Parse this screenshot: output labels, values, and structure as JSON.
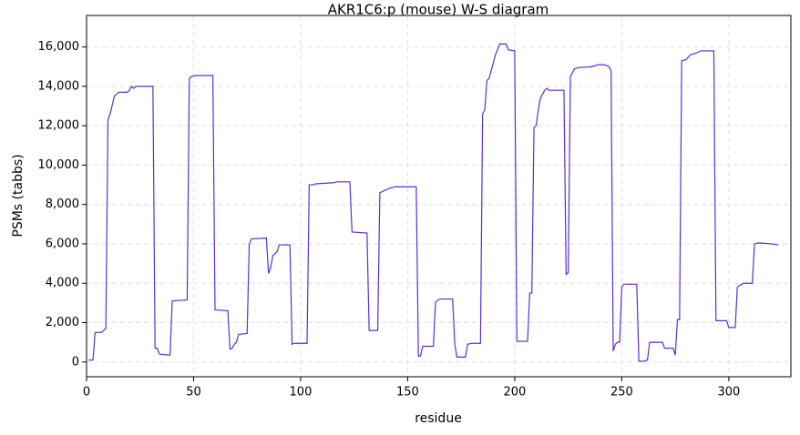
{
  "chart_data": {
    "type": "line",
    "title": "AKR1C6:p (mouse) W-S diagram",
    "x_label": "residue",
    "y_label": "PSMs (tabbs)",
    "xlim": [
      0,
      329
    ],
    "ylim": [
      -750,
      17600
    ],
    "xticks": [
      0,
      50,
      100,
      150,
      200,
      250,
      300
    ],
    "yticks": [
      0,
      {
        "value": 2000,
        "label": "2,000"
      },
      {
        "value": 4000,
        "label": "4,000"
      },
      {
        "value": 6000,
        "label": "6,000"
      },
      {
        "value": 8000,
        "label": "8,000"
      },
      {
        "value": 10000,
        "label": "10,000"
      },
      {
        "value": 12000,
        "label": "12,000"
      },
      {
        "value": 14000,
        "label": "14,000"
      },
      {
        "value": 16000,
        "label": "16,000"
      }
    ],
    "grid": true,
    "series": [
      {
        "color": "#5a2fd6",
        "x": [
          1,
          3,
          4,
          7,
          9,
          10,
          11,
          13,
          14,
          15,
          19,
          20,
          21,
          22,
          23,
          29,
          31,
          32,
          33,
          34,
          39,
          40,
          47,
          48,
          49,
          51,
          59,
          60,
          66,
          67,
          68,
          69,
          70,
          71,
          75,
          76,
          77,
          84,
          85,
          86,
          87,
          88,
          89,
          90,
          95,
          96,
          97,
          103,
          104,
          106,
          107,
          115,
          117,
          123,
          124,
          131,
          132,
          136,
          137,
          139,
          141,
          144,
          154,
          155,
          156,
          157,
          162,
          163,
          165,
          171,
          172,
          173,
          177,
          178,
          180,
          184,
          185,
          186,
          187,
          188,
          189,
          191,
          193,
          196,
          197,
          200,
          201,
          206,
          207,
          208,
          209,
          210,
          211,
          212,
          214,
          215,
          216,
          223,
          224,
          225,
          226,
          228,
          230,
          236,
          239,
          242,
          244,
          245,
          246,
          247,
          248,
          249,
          250,
          251,
          257,
          258,
          260,
          262,
          263,
          269,
          270,
          274,
          275,
          276,
          277,
          278,
          280,
          282,
          285,
          287,
          293,
          294,
          299,
          300,
          303,
          304,
          306,
          307,
          311,
          312,
          314,
          320,
          323
        ],
        "values": [
          100,
          100,
          1500,
          1500,
          1700,
          12300,
          12600,
          13500,
          13600,
          13700,
          13700,
          13800,
          14000,
          13900,
          14000,
          14000,
          14000,
          700,
          700,
          400,
          350,
          3100,
          3150,
          14400,
          14500,
          14550,
          14550,
          2650,
          2600,
          650,
          700,
          900,
          1000,
          1400,
          1450,
          6000,
          6250,
          6300,
          4500,
          4800,
          5400,
          5500,
          5600,
          5950,
          5950,
          900,
          950,
          950,
          9000,
          9000,
          9050,
          9100,
          9150,
          9150,
          6600,
          6550,
          1600,
          1600,
          8600,
          8700,
          8800,
          8900,
          8900,
          300,
          300,
          800,
          800,
          3050,
          3200,
          3200,
          900,
          250,
          250,
          900,
          950,
          950,
          12600,
          12800,
          14300,
          14400,
          14800,
          15600,
          16150,
          16150,
          15850,
          15800,
          1050,
          1050,
          3500,
          3500,
          11900,
          12000,
          12800,
          13400,
          13800,
          13900,
          13800,
          13800,
          4450,
          4550,
          14500,
          14900,
          14950,
          15000,
          15100,
          15100,
          15000,
          14800,
          550,
          900,
          1000,
          1000,
          3800,
          3950,
          3950,
          50,
          30,
          100,
          1000,
          1000,
          700,
          700,
          350,
          2150,
          2150,
          15300,
          15350,
          15600,
          15700,
          15800,
          15800,
          2100,
          2100,
          1750,
          1750,
          3800,
          3950,
          4000,
          4000,
          6000,
          6050,
          6000,
          5950
        ]
      }
    ]
  }
}
